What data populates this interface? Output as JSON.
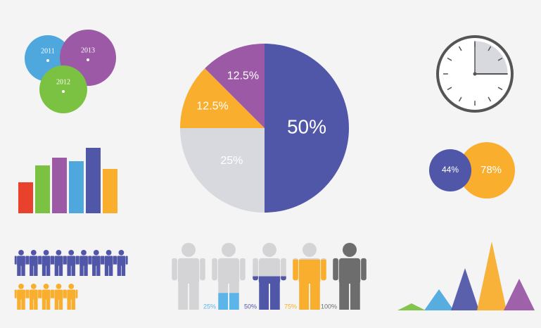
{
  "chart_data": [
    {
      "type": "venn",
      "categories": [
        "2011",
        "2013",
        "2012"
      ],
      "colors": [
        "#4ea8de",
        "#9b59a6",
        "#7cc242"
      ]
    },
    {
      "type": "bar",
      "values": [
        44,
        68,
        79,
        74,
        93,
        63
      ],
      "colors": [
        "#e8412c",
        "#7cc242",
        "#9b59a6",
        "#4ea8de",
        "#5157a8",
        "#f9ae2e"
      ],
      "ylim": [
        0,
        100
      ]
    },
    {
      "type": "pie",
      "values": [
        50,
        25,
        12.5,
        12.5
      ],
      "value_labels": [
        "50%",
        "25%",
        "12.5%",
        "12.5%"
      ],
      "colors": [
        "#5157a8",
        "#d8d9df",
        "#f9ae2e",
        "#9b59a6"
      ]
    },
    {
      "type": "clock",
      "values": [
        25
      ],
      "color": "#d8d9df"
    },
    {
      "type": "bubble",
      "values": [
        44,
        78
      ],
      "value_labels": [
        "44%",
        "78%"
      ],
      "colors": [
        "#5157a8",
        "#f9ae2e"
      ]
    },
    {
      "type": "pictogram",
      "values": [
        9,
        5
      ],
      "colors": [
        "#5157a8",
        "#f9ae2e"
      ]
    },
    {
      "type": "fill-figure",
      "values": [
        0,
        25,
        50,
        75,
        100
      ],
      "value_labels": [
        null,
        "25%",
        "50%",
        "75%",
        "100%"
      ],
      "colors": [
        "#d4d4d6",
        "#5bb5e8",
        "#5157a8",
        "#f9ae2e",
        "#6d6d6d"
      ]
    },
    {
      "type": "triangle",
      "values": [
        10,
        30,
        60,
        98,
        45
      ],
      "colors": [
        "#7cc242",
        "#4ea8de",
        "#5157a8",
        "#f9ae2e",
        "#9b59a6"
      ],
      "ylim": [
        0,
        100
      ]
    }
  ]
}
